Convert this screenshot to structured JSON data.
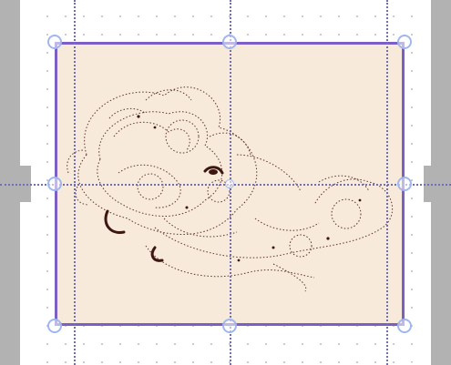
{
  "canvas": {
    "background": "#ffffff",
    "grid_dot_color": "#bfbfbf",
    "frame_fill": "#f7eadb",
    "frame_border": "#7b5fc4",
    "guide_color": "#6f6fb7",
    "handle_color": "#9fb6ef",
    "artwork_color": "#4a1f1a"
  },
  "artwork": {
    "icon": "lace-embroidery-pattern"
  }
}
